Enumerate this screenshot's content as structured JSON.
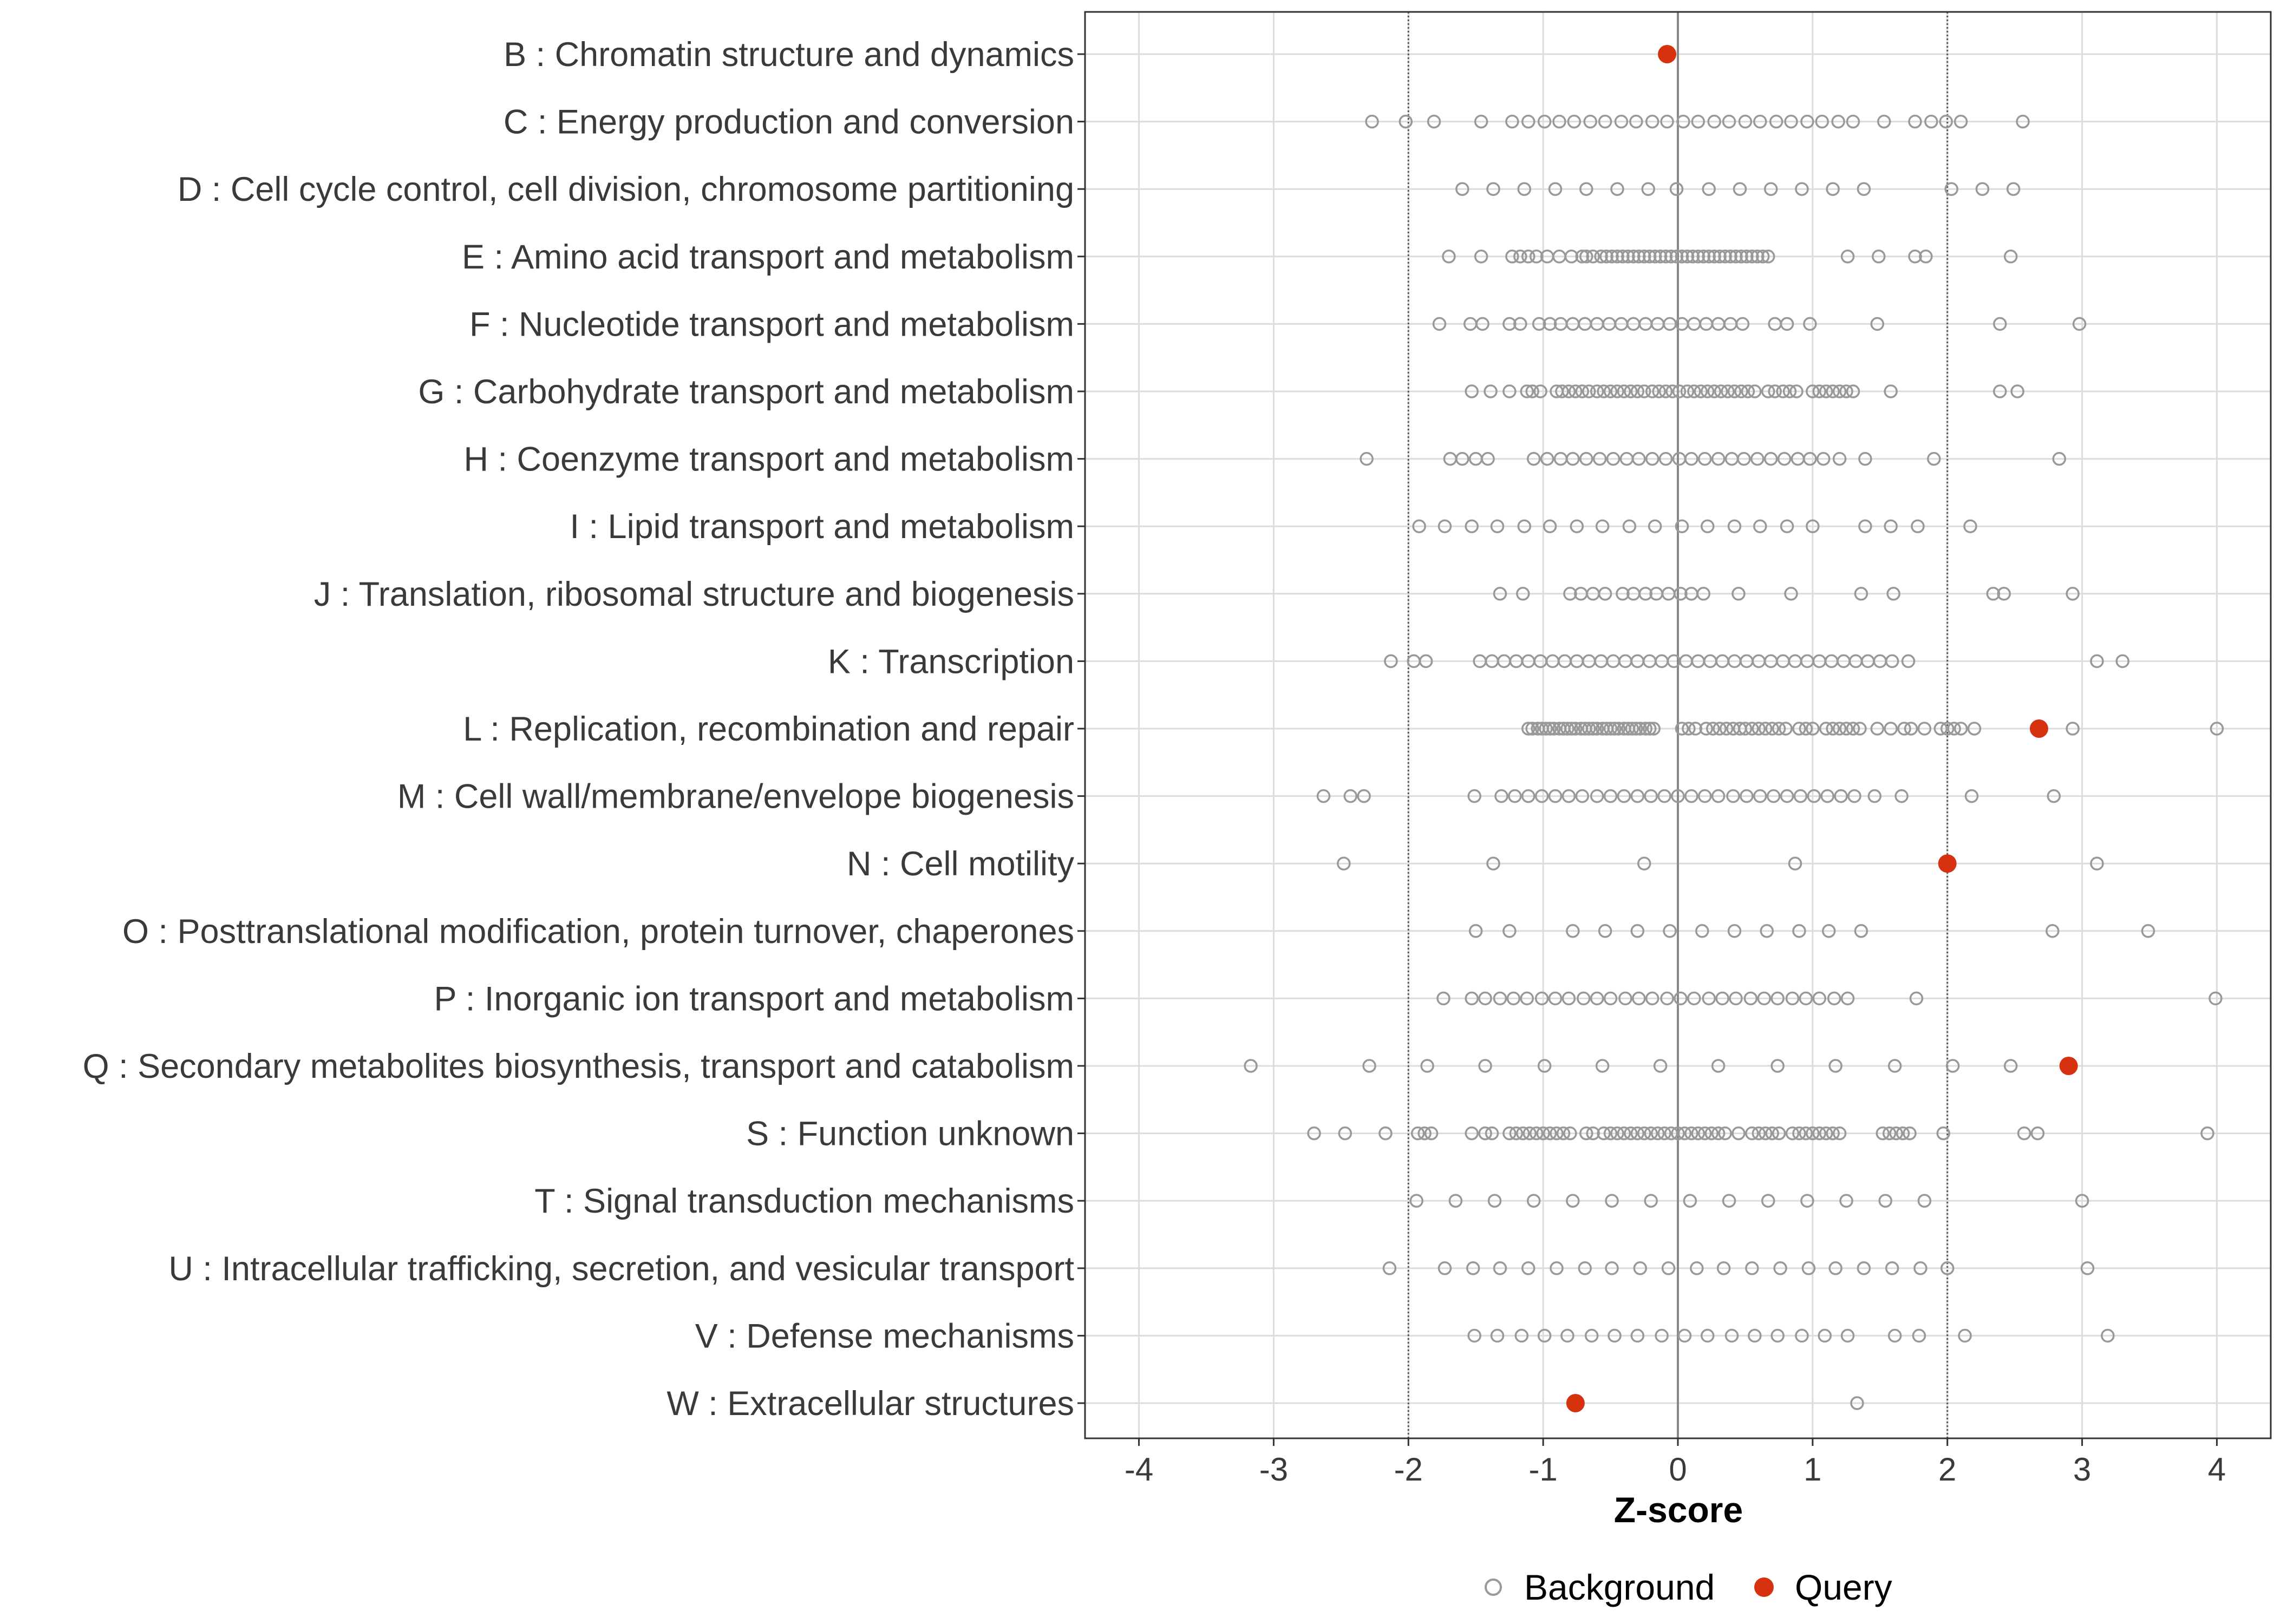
{
  "chart_data": {
    "type": "scatter",
    "title": "",
    "xlabel": "Z-score",
    "ylabel": "",
    "xlim": [
      -4.4,
      4.4
    ],
    "x_ticks": [
      -4,
      -3,
      -2,
      -1,
      0,
      1,
      2,
      3,
      4
    ],
    "x_tick_labels": [
      "-4",
      "-3",
      "-2",
      "-1",
      "0",
      "1",
      "2",
      "3",
      "4"
    ],
    "reference_lines": [
      -2,
      0,
      2
    ],
    "grid": true,
    "legend": {
      "position": "bottom",
      "entries": [
        {
          "name": "Background",
          "marker": "open-circle",
          "color": "#999999"
        },
        {
          "name": "Query",
          "marker": "filled-circle",
          "color": "#D7320F"
        }
      ]
    },
    "categories": [
      "B : Chromatin structure and dynamics",
      "C : Energy production and conversion",
      "D : Cell cycle control, cell division, chromosome partitioning",
      "E : Amino acid transport and metabolism",
      "F : Nucleotide transport and metabolism",
      "G : Carbohydrate transport and metabolism",
      "H : Coenzyme transport and metabolism",
      "I : Lipid transport and metabolism",
      "J : Translation, ribosomal structure and biogenesis",
      "K : Transcription",
      "L : Replication, recombination and repair",
      "M : Cell wall/membrane/envelope biogenesis",
      "N : Cell motility",
      "O : Posttranslational modification, protein turnover, chaperones",
      "P : Inorganic ion transport and metabolism",
      "Q : Secondary metabolites biosynthesis, transport and catabolism",
      "S : Function unknown",
      "T : Signal transduction mechanisms",
      "U : Intracellular trafficking, secretion, and vesicular transport",
      "V : Defense mechanisms",
      "W : Extracellular structures"
    ],
    "series": [
      {
        "name": "Background",
        "values": [
          [],
          [
            -2.27,
            -2.02,
            -1.81,
            -1.46,
            -1.23,
            -1.11,
            -0.99,
            -0.88,
            -0.77,
            -0.65,
            -0.54,
            -0.42,
            -0.31,
            -0.19,
            -0.08,
            0.04,
            0.15,
            0.27,
            0.38,
            0.5,
            0.61,
            0.73,
            0.84,
            0.96,
            1.07,
            1.19,
            1.3,
            1.53,
            1.76,
            1.88,
            1.99,
            2.1,
            2.56
          ],
          [
            -1.6,
            -1.37,
            -1.14,
            -0.91,
            -0.68,
            -0.45,
            -0.22,
            -0.01,
            0.23,
            0.46,
            0.69,
            0.92,
            1.15,
            1.38,
            2.03,
            2.26,
            2.49
          ],
          [
            -1.7,
            -1.46,
            -1.23,
            -1.17,
            -1.11,
            -1.05,
            -0.97,
            -0.88,
            -0.79,
            -0.71,
            -0.68,
            -0.63,
            -0.57,
            -0.53,
            -0.49,
            -0.45,
            -0.41,
            -0.37,
            -0.33,
            -0.29,
            -0.25,
            -0.21,
            -0.17,
            -0.13,
            -0.09,
            -0.05,
            -0.01,
            0.03,
            0.07,
            0.11,
            0.15,
            0.19,
            0.23,
            0.27,
            0.31,
            0.35,
            0.39,
            0.43,
            0.47,
            0.51,
            0.55,
            0.59,
            0.63,
            0.67,
            1.26,
            1.49,
            1.76,
            1.84,
            2.47
          ],
          [
            -1.77,
            -1.54,
            -1.45,
            -1.25,
            -1.17,
            -1.03,
            -0.95,
            -0.87,
            -0.78,
            -0.69,
            -0.6,
            -0.51,
            -0.42,
            -0.33,
            -0.24,
            -0.15,
            -0.06,
            0.03,
            0.12,
            0.21,
            0.3,
            0.39,
            0.48,
            0.72,
            0.81,
            0.98,
            1.48,
            2.39,
            2.98
          ],
          [
            -1.53,
            -1.39,
            -1.25,
            -1.12,
            -1.08,
            -1.02,
            -0.9,
            -0.86,
            -0.81,
            -0.76,
            -0.71,
            -0.66,
            -0.6,
            -0.55,
            -0.5,
            -0.45,
            -0.4,
            -0.35,
            -0.3,
            -0.25,
            -0.19,
            -0.14,
            -0.09,
            -0.04,
            0.01,
            0.07,
            0.12,
            0.17,
            0.22,
            0.27,
            0.32,
            0.37,
            0.42,
            0.47,
            0.52,
            0.57,
            0.67,
            0.72,
            0.78,
            0.83,
            0.88,
            1.0,
            1.05,
            1.1,
            1.15,
            1.2,
            1.25,
            1.3,
            1.58,
            2.39,
            2.52
          ],
          [
            -2.31,
            -1.69,
            -1.6,
            -1.5,
            -1.41,
            -1.07,
            -0.97,
            -0.87,
            -0.78,
            -0.68,
            -0.58,
            -0.48,
            -0.38,
            -0.29,
            -0.19,
            -0.09,
            0.01,
            0.1,
            0.2,
            0.3,
            0.4,
            0.49,
            0.59,
            0.69,
            0.79,
            0.89,
            0.98,
            1.08,
            1.2,
            1.39,
            1.9,
            2.83
          ],
          [
            -1.92,
            -1.73,
            -1.53,
            -1.34,
            -1.14,
            -0.95,
            -0.75,
            -0.56,
            -0.36,
            -0.17,
            0.03,
            0.22,
            0.42,
            0.61,
            0.81,
            1.0,
            1.39,
            1.58,
            1.78,
            2.17
          ],
          [
            -1.32,
            -1.15,
            -0.8,
            -0.72,
            -0.63,
            -0.54,
            -0.41,
            -0.33,
            -0.24,
            -0.16,
            -0.07,
            0.02,
            0.1,
            0.19,
            0.45,
            0.84,
            1.36,
            1.6,
            2.34,
            2.42,
            2.93
          ],
          [
            -2.13,
            -1.96,
            -1.87,
            -1.47,
            -1.38,
            -1.29,
            -1.2,
            -1.11,
            -1.02,
            -0.93,
            -0.84,
            -0.75,
            -0.66,
            -0.57,
            -0.48,
            -0.39,
            -0.3,
            -0.21,
            -0.12,
            -0.03,
            0.06,
            0.15,
            0.24,
            0.33,
            0.42,
            0.51,
            0.6,
            0.69,
            0.78,
            0.87,
            0.96,
            1.05,
            1.14,
            1.23,
            1.32,
            1.41,
            1.5,
            1.59,
            1.71,
            3.11,
            3.3
          ],
          [
            -1.11,
            -1.08,
            -1.04,
            -1.01,
            -0.98,
            -0.95,
            -0.92,
            -0.88,
            -0.85,
            -0.82,
            -0.79,
            -0.76,
            -0.72,
            -0.69,
            -0.66,
            -0.63,
            -0.6,
            -0.56,
            -0.53,
            -0.5,
            -0.47,
            -0.44,
            -0.4,
            -0.37,
            -0.34,
            -0.31,
            -0.28,
            -0.24,
            -0.21,
            -0.18,
            0.03,
            0.08,
            0.13,
            0.21,
            0.26,
            0.31,
            0.36,
            0.41,
            0.46,
            0.5,
            0.55,
            0.6,
            0.65,
            0.7,
            0.75,
            0.8,
            0.9,
            0.95,
            1.0,
            1.1,
            1.15,
            1.2,
            1.25,
            1.3,
            1.35,
            1.48,
            1.58,
            1.68,
            1.73,
            1.83,
            1.95,
            2.0,
            2.05,
            2.1,
            2.2,
            2.93,
            4.0
          ],
          [
            -2.63,
            -2.43,
            -2.33,
            -1.51,
            -1.31,
            -1.21,
            -1.11,
            -1.01,
            -0.91,
            -0.81,
            -0.71,
            -0.6,
            -0.5,
            -0.4,
            -0.3,
            -0.2,
            -0.1,
            0.0,
            0.1,
            0.2,
            0.3,
            0.41,
            0.51,
            0.61,
            0.71,
            0.81,
            0.91,
            1.01,
            1.11,
            1.21,
            1.31,
            1.46,
            1.66,
            2.18,
            2.79
          ],
          [
            -2.48,
            -1.37,
            -0.25,
            0.87,
            3.11
          ],
          [
            -1.5,
            -1.25,
            -0.78,
            -0.54,
            -0.3,
            -0.06,
            0.18,
            0.42,
            0.66,
            0.9,
            1.12,
            1.36,
            2.78,
            3.49
          ],
          [
            -1.74,
            -1.53,
            -1.43,
            -1.32,
            -1.22,
            -1.12,
            -1.01,
            -0.91,
            -0.81,
            -0.7,
            -0.6,
            -0.5,
            -0.39,
            -0.29,
            -0.19,
            -0.08,
            0.02,
            0.12,
            0.23,
            0.33,
            0.43,
            0.54,
            0.64,
            0.74,
            0.85,
            0.95,
            1.05,
            1.16,
            1.26,
            1.77,
            3.99
          ],
          [
            -3.17,
            -2.29,
            -1.86,
            -1.43,
            -0.99,
            -0.56,
            -0.13,
            0.3,
            0.74,
            1.17,
            1.61,
            2.04,
            2.47
          ],
          [
            -2.7,
            -2.47,
            -2.17,
            -1.93,
            -1.88,
            -1.83,
            -1.53,
            -1.43,
            -1.38,
            -1.25,
            -1.2,
            -1.15,
            -1.1,
            -1.05,
            -1.0,
            -0.95,
            -0.9,
            -0.85,
            -0.8,
            -0.68,
            -0.63,
            -0.55,
            -0.5,
            -0.45,
            -0.4,
            -0.35,
            -0.3,
            -0.25,
            -0.2,
            -0.15,
            -0.1,
            -0.05,
            0.0,
            0.05,
            0.1,
            0.15,
            0.2,
            0.25,
            0.3,
            0.35,
            0.45,
            0.55,
            0.6,
            0.65,
            0.7,
            0.75,
            0.85,
            0.9,
            0.95,
            1.0,
            1.05,
            1.1,
            1.15,
            1.2,
            1.52,
            1.57,
            1.62,
            1.67,
            1.72,
            1.97,
            2.57,
            2.67,
            3.93
          ],
          [
            -1.94,
            -1.65,
            -1.36,
            -1.07,
            -0.78,
            -0.49,
            -0.2,
            0.09,
            0.38,
            0.67,
            0.96,
            1.25,
            1.54,
            1.83,
            3.0
          ],
          [
            -2.14,
            -1.73,
            -1.52,
            -1.32,
            -1.11,
            -0.9,
            -0.69,
            -0.49,
            -0.28,
            -0.07,
            0.14,
            0.34,
            0.55,
            0.76,
            0.97,
            1.17,
            1.38,
            1.59,
            1.8,
            2.0,
            3.04
          ],
          [
            -1.51,
            -1.34,
            -1.16,
            -0.99,
            -0.82,
            -0.64,
            -0.47,
            -0.3,
            -0.12,
            0.05,
            0.22,
            0.4,
            0.57,
            0.74,
            0.92,
            1.09,
            1.26,
            1.61,
            1.79,
            2.13,
            3.19
          ],
          [
            1.33
          ]
        ]
      },
      {
        "name": "Query",
        "values": [
          -0.08,
          null,
          null,
          null,
          null,
          null,
          null,
          null,
          null,
          null,
          2.68,
          null,
          2.0,
          null,
          null,
          2.9,
          null,
          null,
          null,
          null,
          -0.76
        ]
      }
    ]
  }
}
